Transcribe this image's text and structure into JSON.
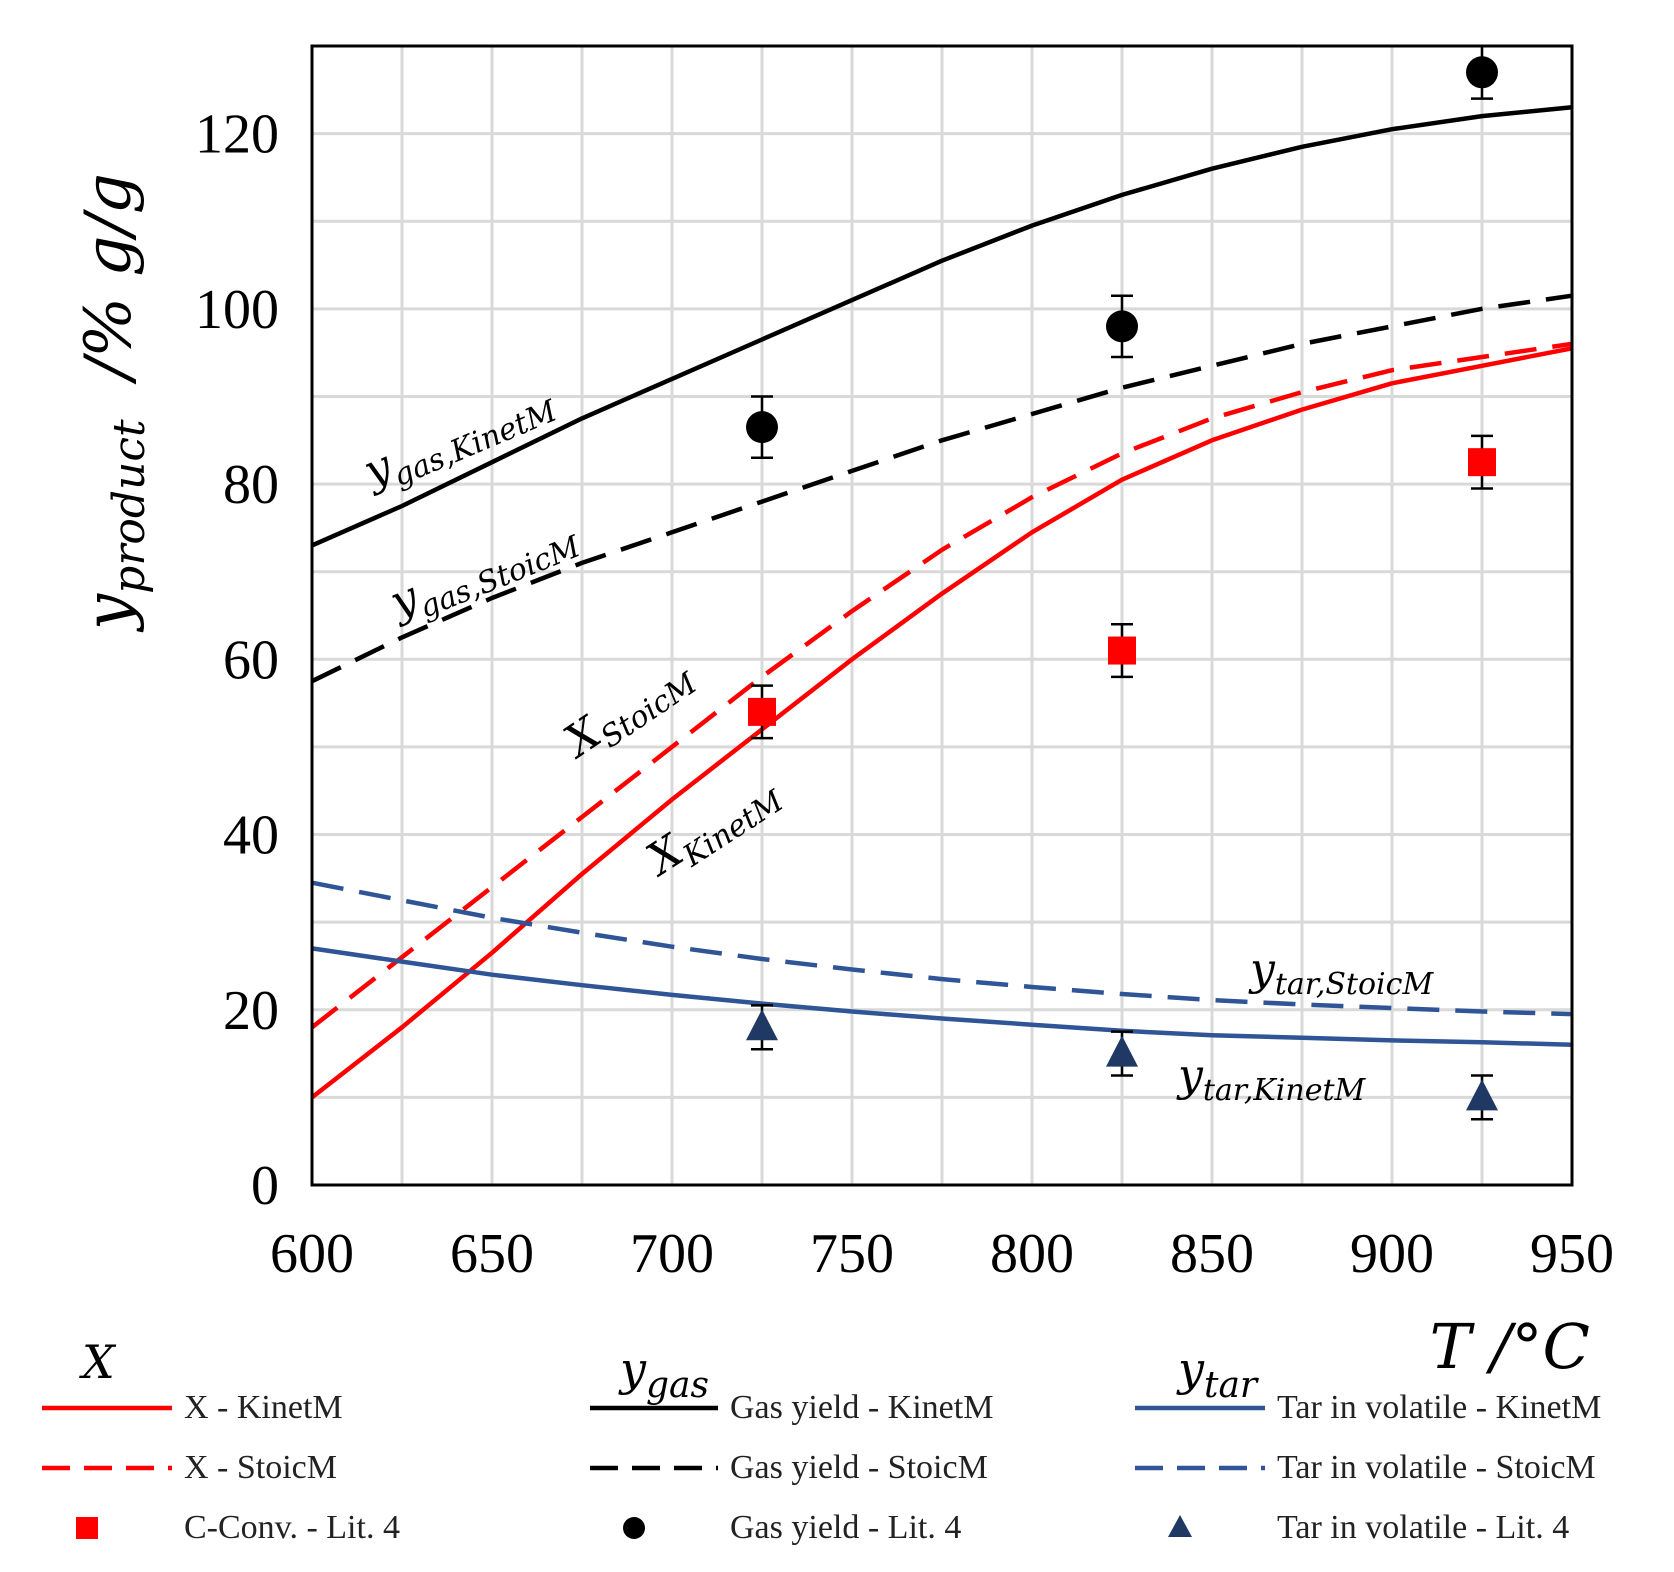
{
  "chart_data": {
    "type": "line",
    "xlabel": "T /°C",
    "ylabel_main": "y",
    "ylabel_sub": "product",
    "ylabel_unit": "/% g/g",
    "xlim": [
      600,
      950
    ],
    "ylim": [
      0,
      130
    ],
    "xticks": [
      "600",
      "650",
      "700",
      "750",
      "800",
      "850",
      "900",
      "950"
    ],
    "yticks": [
      "0",
      "20",
      "40",
      "60",
      "80",
      "100",
      "120"
    ],
    "colors": {
      "red": "#ff0000",
      "black": "#000000",
      "blue": "#2f5597",
      "marker_blue": "#1f3864"
    },
    "series": [
      {
        "name": "X - KinetM",
        "style": "solid",
        "color": "red",
        "x": [
          600,
          625,
          650,
          675,
          700,
          725,
          750,
          775,
          800,
          825,
          850,
          875,
          900,
          925,
          950
        ],
        "y": [
          10,
          18,
          26.5,
          35.5,
          44,
          52,
          60,
          67.5,
          74.5,
          80.5,
          85,
          88.5,
          91.5,
          93.5,
          95.5
        ]
      },
      {
        "name": "X - StoicM",
        "style": "dashed",
        "color": "red",
        "x": [
          600,
          625,
          650,
          675,
          700,
          725,
          750,
          775,
          800,
          825,
          850,
          875,
          900,
          925,
          950
        ],
        "y": [
          18,
          26,
          34,
          42,
          50,
          58,
          65.5,
          72.5,
          78.5,
          83.5,
          87.5,
          90.5,
          93,
          94.5,
          96
        ]
      },
      {
        "name": "Gas yield - KinetM",
        "style": "solid",
        "color": "black",
        "x": [
          600,
          625,
          650,
          675,
          700,
          725,
          750,
          775,
          800,
          825,
          850,
          875,
          900,
          925,
          950
        ],
        "y": [
          73,
          77.5,
          82.5,
          87.5,
          92,
          96.5,
          101,
          105.5,
          109.5,
          113,
          116,
          118.5,
          120.5,
          122,
          123
        ]
      },
      {
        "name": "Gas yield - StoicM",
        "style": "dashed",
        "color": "black",
        "x": [
          600,
          625,
          650,
          675,
          700,
          725,
          750,
          775,
          800,
          825,
          850,
          875,
          900,
          925,
          950
        ],
        "y": [
          57.5,
          62.5,
          67,
          71,
          74.5,
          78,
          81.5,
          85,
          88,
          91,
          93.5,
          96,
          98,
          100,
          101.5
        ]
      },
      {
        "name": "Tar in volatile - KinetM",
        "style": "solid",
        "color": "blue",
        "x": [
          600,
          625,
          650,
          675,
          700,
          725,
          750,
          775,
          800,
          825,
          850,
          875,
          900,
          925,
          950
        ],
        "y": [
          27,
          25.5,
          24,
          22.8,
          21.7,
          20.7,
          19.8,
          19,
          18.3,
          17.6,
          17.1,
          16.8,
          16.5,
          16.3,
          16
        ]
      },
      {
        "name": "Tar in volatile - StoicM",
        "style": "dashed",
        "color": "blue",
        "x": [
          600,
          625,
          650,
          675,
          700,
          725,
          750,
          775,
          800,
          825,
          850,
          875,
          900,
          925,
          950
        ],
        "y": [
          34.5,
          32.5,
          30.5,
          28.8,
          27.2,
          25.8,
          24.6,
          23.5,
          22.6,
          21.8,
          21.1,
          20.6,
          20.2,
          19.8,
          19.5
        ]
      }
    ],
    "points": [
      {
        "name": "C-Conv. - Lit. 4",
        "marker": "square",
        "color": "red",
        "x": [
          725,
          825,
          925
        ],
        "y": [
          54,
          61,
          82.5
        ],
        "err": [
          3,
          3,
          3
        ]
      },
      {
        "name": "Gas yield - Lit. 4",
        "marker": "circle",
        "color": "black",
        "x": [
          725,
          825,
          925
        ],
        "y": [
          86.5,
          98,
          127
        ],
        "err": [
          3.5,
          3.5,
          3
        ]
      },
      {
        "name": "Tar in volatile - Lit. 4",
        "marker": "triangle",
        "color": "marker_blue",
        "x": [
          725,
          825,
          925
        ],
        "y": [
          18,
          15,
          10
        ],
        "err": [
          2.5,
          2.5,
          2.5
        ]
      }
    ],
    "annotations": [
      {
        "main": "y",
        "sub": "gas,KinetM"
      },
      {
        "main": "y",
        "sub": "gas,StoicM"
      },
      {
        "main": "X",
        "sub": "StoicM"
      },
      {
        "main": "X",
        "sub": "KinetM"
      },
      {
        "main": "y",
        "sub": "tar,StoicM"
      },
      {
        "main": "y",
        "sub": "tar,KinetM"
      }
    ],
    "legend": {
      "headers": [
        {
          "main": "X",
          "sub": ""
        },
        {
          "main": "y",
          "sub": "gas"
        },
        {
          "main": "y",
          "sub": "tar"
        }
      ],
      "entries": [
        {
          "label": "X - KinetM",
          "kind": "solid",
          "color": "red"
        },
        {
          "label": "Gas yield - KinetM",
          "kind": "solid",
          "color": "black"
        },
        {
          "label": "Tar in volatile - KinetM",
          "kind": "solid",
          "color": "blue"
        },
        {
          "label": "X - StoicM",
          "kind": "dashed",
          "color": "red"
        },
        {
          "label": "Gas yield - StoicM",
          "kind": "dashed",
          "color": "black"
        },
        {
          "label": "Tar in volatile - StoicM",
          "kind": "dashed",
          "color": "blue"
        },
        {
          "label": "C-Conv. - Lit. 4",
          "kind": "square",
          "color": "red"
        },
        {
          "label": "Gas yield - Lit. 4",
          "kind": "circle",
          "color": "black"
        },
        {
          "label": "Tar in volatile - Lit. 4",
          "kind": "triangle",
          "color": "marker_blue"
        }
      ]
    }
  }
}
